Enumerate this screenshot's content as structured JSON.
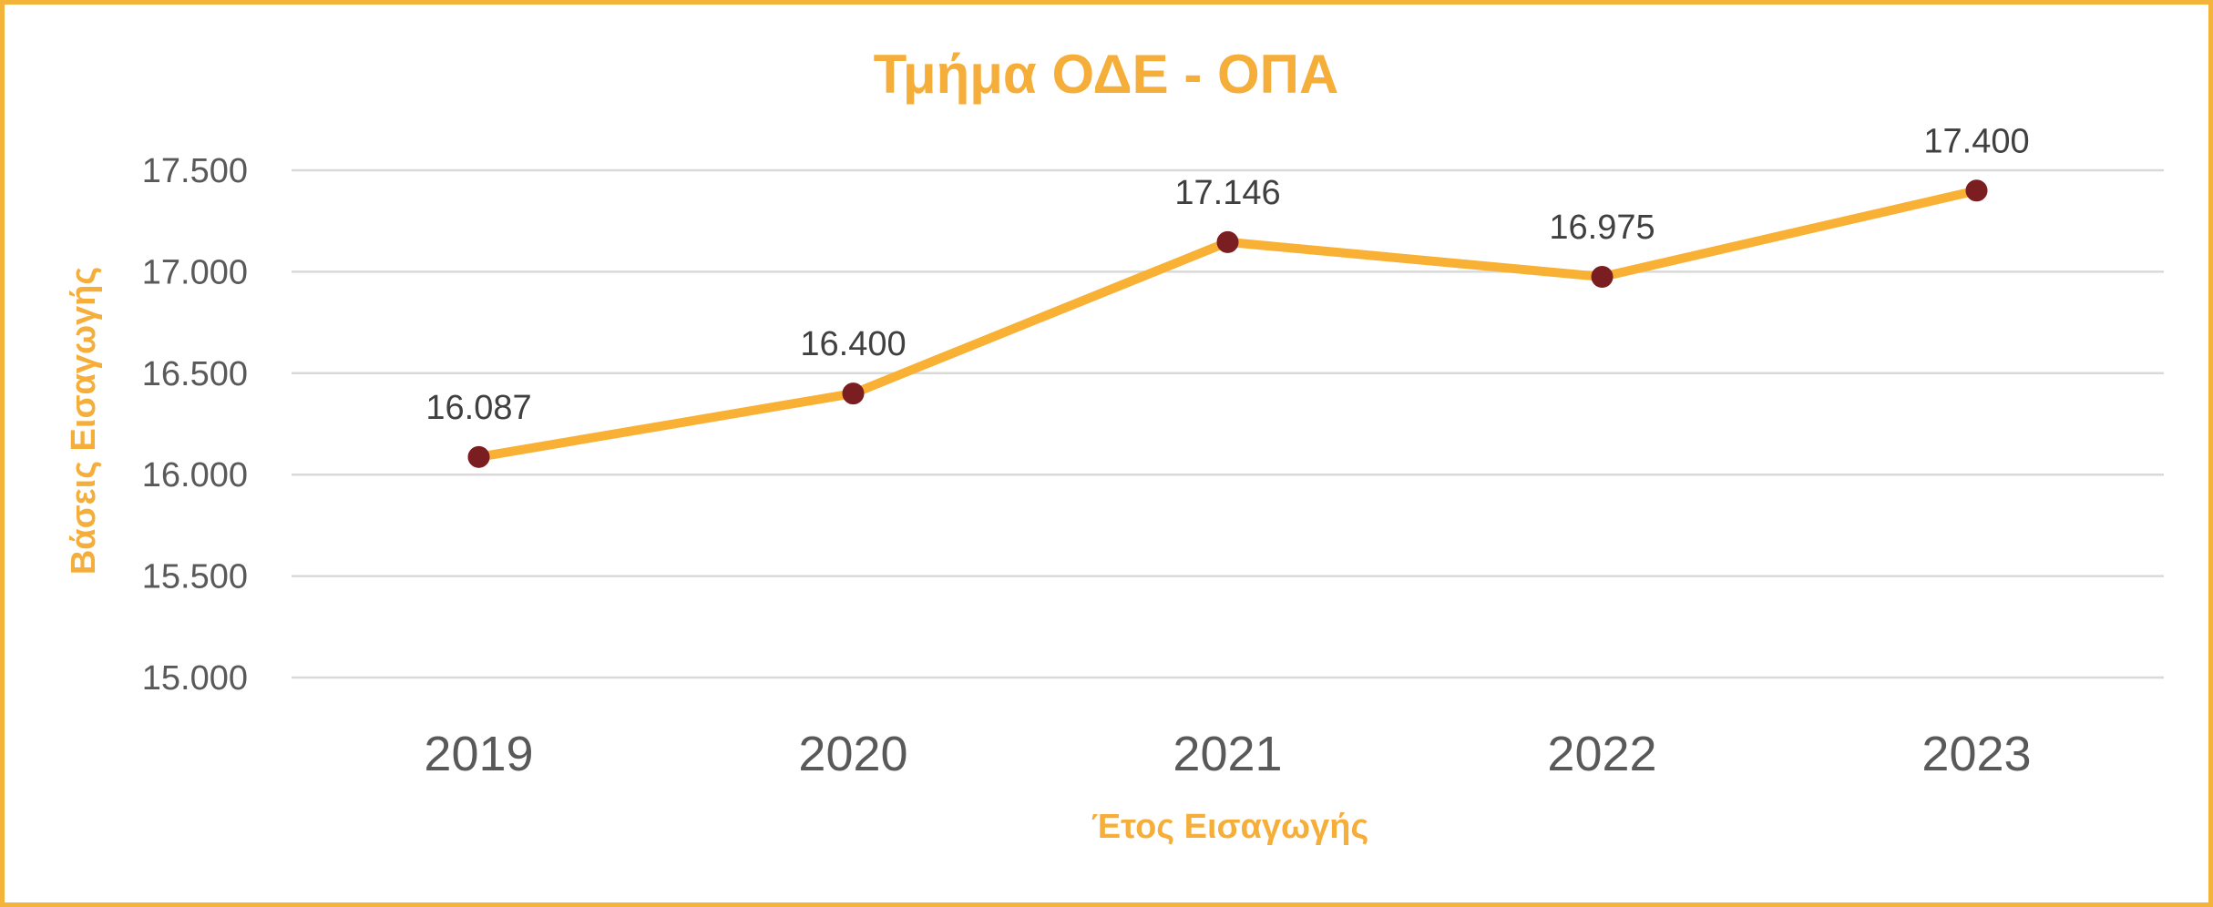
{
  "chart_data": {
    "type": "line",
    "title": "Τμήμα ΟΔΕ - ΟΠΑ",
    "xlabel": "Έτος Εισαγωγής",
    "ylabel": "Βάσεις Εισαγωγής",
    "categories": [
      "2019",
      "2020",
      "2021",
      "2022",
      "2023"
    ],
    "series": [
      {
        "values": [
          16087,
          16400,
          17146,
          16975,
          17400
        ],
        "data_labels": [
          "16.087",
          "16.400",
          "17.146",
          "16.975",
          "17.400"
        ]
      }
    ],
    "ylim": [
      15000,
      17500
    ],
    "y_ticks": [
      15000,
      15500,
      16000,
      16500,
      17000,
      17500
    ],
    "y_tick_labels": [
      "15.000",
      "15.500",
      "16.000",
      "16.500",
      "17.000",
      "17.500"
    ],
    "grid": true,
    "legend": "none",
    "colors": {
      "frame": "#F4B43C",
      "title": "#F5AE3A",
      "line": "#F8B135",
      "marker": "#7B1E22",
      "gridline": "#D9D9D9",
      "tick_text": "#595959"
    }
  }
}
